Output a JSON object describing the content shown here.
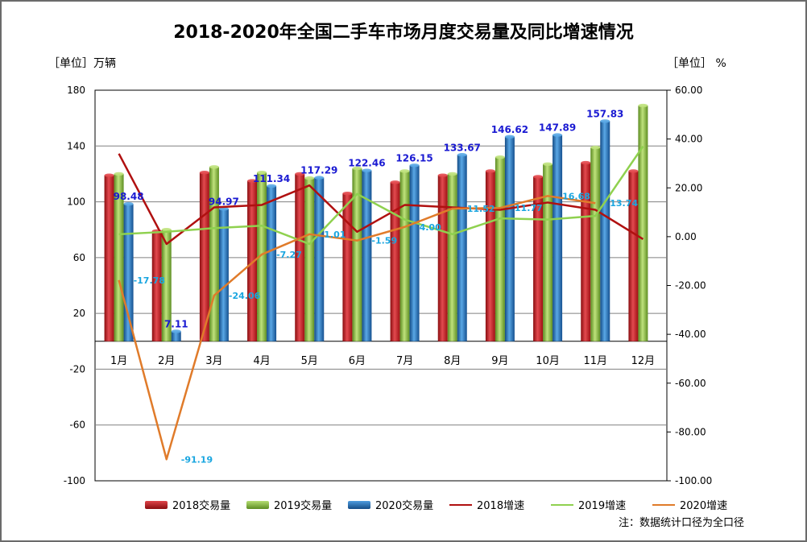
{
  "chart_data": {
    "type": "bar",
    "title": "2018-2020年全国二手车市场月度交易量及同比增速情况",
    "ylabel": "［单位］万辆",
    "y2label": "［单位］ %",
    "note": "注：数据统计口径为全口径",
    "ylim": [
      -100,
      180
    ],
    "y_ticks": [
      180,
      140,
      100,
      60,
      20,
      -20,
      -60,
      -100
    ],
    "y2lim": [
      -100,
      60
    ],
    "y2_ticks": [
      "60.00",
      "40.00",
      "20.00",
      "0.00",
      "-20.00",
      "-40.00",
      "-60.00",
      "-80.00",
      "-100.00"
    ],
    "categories": [
      "1月",
      "2月",
      "3月",
      "4月",
      "5月",
      "6月",
      "7月",
      "8月",
      "9月",
      "10月",
      "11月",
      "12月"
    ],
    "bar_series": [
      {
        "name": "2018交易量",
        "color": "#c0161b",
        "values": [
          119,
          79,
          121,
          115,
          120,
          106,
          114,
          119,
          122,
          118,
          128,
          122
        ]
      },
      {
        "name": "2019交易量",
        "color": "#7fb435",
        "values": [
          120,
          80,
          125,
          121,
          117,
          124,
          122,
          120,
          132,
          127,
          139,
          169
        ]
      },
      {
        "name": "2020交易量",
        "color": "#1f6eb4",
        "values": [
          98.48,
          7.11,
          94.97,
          111.34,
          117.29,
          122.46,
          126.15,
          133.67,
          146.62,
          147.89,
          157.83,
          null
        ],
        "labels": [
          "98.48",
          "7.11",
          "94.97",
          "111.34",
          "117.29",
          "122.46",
          "126.15",
          "133.67",
          "146.62",
          "147.89",
          "157.83",
          ""
        ]
      }
    ],
    "line_series": [
      {
        "name": "2018增速",
        "color": "#b01010",
        "values": [
          34,
          -3,
          12,
          13,
          21,
          2,
          13,
          12,
          11,
          14,
          11,
          -1
        ]
      },
      {
        "name": "2019增速",
        "color": "#8fd14f",
        "values": [
          1,
          2,
          3.5,
          4.5,
          -3,
          17.5,
          7,
          1,
          7.5,
          7,
          8.5,
          37
        ]
      },
      {
        "name": "2020增速",
        "color": "#e07b2a",
        "values": [
          -17.78,
          -91.19,
          -24.06,
          -7.27,
          1.01,
          -1.59,
          4.0,
          11.52,
          11.77,
          16.68,
          13.74,
          null
        ],
        "labels": [
          "-17.78",
          "-91.19",
          "-24.06",
          "-7.27",
          "1.01",
          "-1.59",
          "4.00",
          "11.52",
          "11.77",
          "16.68",
          "13.74",
          ""
        ]
      }
    ]
  }
}
